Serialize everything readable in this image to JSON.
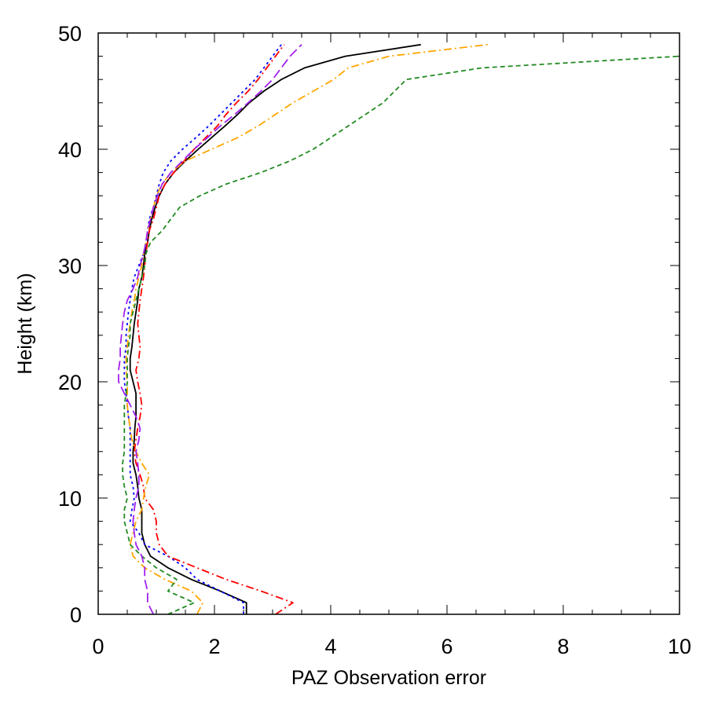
{
  "chart_data": {
    "type": "line",
    "title": "",
    "xlabel": "PAZ Observation error",
    "ylabel": "Height (km)",
    "xlim": [
      0,
      10
    ],
    "ylim": [
      0,
      50
    ],
    "xticks": [
      0,
      2,
      4,
      6,
      8,
      10
    ],
    "yticks": [
      0,
      10,
      20,
      30,
      40,
      50
    ],
    "grid": false,
    "series": [
      {
        "color": "#000000",
        "dash": "solid",
        "points": [
          [
            2.55,
            0
          ],
          [
            2.55,
            1
          ],
          [
            2.1,
            2
          ],
          [
            1.6,
            3
          ],
          [
            1.2,
            4
          ],
          [
            0.9,
            5
          ],
          [
            0.8,
            6
          ],
          [
            0.75,
            7
          ],
          [
            0.75,
            8
          ],
          [
            0.75,
            9
          ],
          [
            0.7,
            10
          ],
          [
            0.68,
            11
          ],
          [
            0.65,
            12
          ],
          [
            0.6,
            13
          ],
          [
            0.6,
            14
          ],
          [
            0.62,
            15
          ],
          [
            0.63,
            16
          ],
          [
            0.65,
            17
          ],
          [
            0.65,
            18
          ],
          [
            0.65,
            19
          ],
          [
            0.6,
            20
          ],
          [
            0.55,
            21
          ],
          [
            0.55,
            22
          ],
          [
            0.58,
            23
          ],
          [
            0.6,
            24
          ],
          [
            0.62,
            25
          ],
          [
            0.65,
            26
          ],
          [
            0.68,
            27
          ],
          [
            0.7,
            28
          ],
          [
            0.75,
            29
          ],
          [
            0.78,
            30
          ],
          [
            0.8,
            31
          ],
          [
            0.85,
            32
          ],
          [
            0.88,
            33
          ],
          [
            0.92,
            34
          ],
          [
            0.98,
            35
          ],
          [
            1.05,
            36
          ],
          [
            1.15,
            37
          ],
          [
            1.3,
            38
          ],
          [
            1.5,
            39
          ],
          [
            1.72,
            40
          ],
          [
            1.95,
            41
          ],
          [
            2.18,
            42
          ],
          [
            2.4,
            43
          ],
          [
            2.6,
            44
          ],
          [
            2.85,
            45
          ],
          [
            3.15,
            46
          ],
          [
            3.55,
            47
          ],
          [
            4.25,
            48
          ],
          [
            5.55,
            49
          ]
        ]
      },
      {
        "color": "#0000ff",
        "dash": "dotted",
        "points": [
          [
            2.5,
            0
          ],
          [
            2.5,
            1
          ],
          [
            2.1,
            2
          ],
          [
            1.7,
            3
          ],
          [
            1.5,
            4
          ],
          [
            1.2,
            5
          ],
          [
            0.8,
            6
          ],
          [
            0.7,
            7
          ],
          [
            0.55,
            8
          ],
          [
            0.58,
            9
          ],
          [
            0.62,
            10
          ],
          [
            0.6,
            11
          ],
          [
            0.55,
            12
          ],
          [
            0.55,
            13
          ],
          [
            0.55,
            14
          ],
          [
            0.55,
            15
          ],
          [
            0.55,
            16
          ],
          [
            0.52,
            17
          ],
          [
            0.5,
            18
          ],
          [
            0.48,
            19
          ],
          [
            0.45,
            20
          ],
          [
            0.45,
            21
          ],
          [
            0.45,
            22
          ],
          [
            0.48,
            23
          ],
          [
            0.48,
            24
          ],
          [
            0.5,
            25
          ],
          [
            0.52,
            26
          ],
          [
            0.55,
            27
          ],
          [
            0.58,
            28
          ],
          [
            0.62,
            29
          ],
          [
            0.7,
            30
          ],
          [
            0.78,
            31
          ],
          [
            0.82,
            32
          ],
          [
            0.85,
            33
          ],
          [
            0.88,
            34
          ],
          [
            0.95,
            35
          ],
          [
            1.0,
            36
          ],
          [
            1.05,
            37
          ],
          [
            1.12,
            38
          ],
          [
            1.25,
            39
          ],
          [
            1.45,
            40
          ],
          [
            1.68,
            41
          ],
          [
            1.9,
            42
          ],
          [
            2.1,
            43
          ],
          [
            2.3,
            44
          ],
          [
            2.5,
            45
          ],
          [
            2.7,
            46
          ],
          [
            2.85,
            47
          ],
          [
            3.0,
            48
          ],
          [
            3.15,
            49
          ]
        ]
      },
      {
        "color": "#ff0000",
        "dash": "dashdot",
        "points": [
          [
            3.05,
            0
          ],
          [
            3.35,
            1
          ],
          [
            2.8,
            2
          ],
          [
            2.2,
            3
          ],
          [
            1.7,
            4
          ],
          [
            1.2,
            5
          ],
          [
            1.05,
            6
          ],
          [
            1.0,
            7
          ],
          [
            1.0,
            8
          ],
          [
            0.95,
            9
          ],
          [
            0.8,
            10
          ],
          [
            0.78,
            11
          ],
          [
            0.72,
            12
          ],
          [
            0.65,
            13
          ],
          [
            0.62,
            14
          ],
          [
            0.65,
            15
          ],
          [
            0.68,
            16
          ],
          [
            0.72,
            17
          ],
          [
            0.75,
            18
          ],
          [
            0.72,
            19
          ],
          [
            0.68,
            20
          ],
          [
            0.65,
            21
          ],
          [
            0.7,
            22
          ],
          [
            0.72,
            23
          ],
          [
            0.7,
            24
          ],
          [
            0.68,
            25
          ],
          [
            0.7,
            26
          ],
          [
            0.72,
            27
          ],
          [
            0.75,
            28
          ],
          [
            0.78,
            29
          ],
          [
            0.8,
            30
          ],
          [
            0.82,
            31
          ],
          [
            0.85,
            32
          ],
          [
            0.88,
            33
          ],
          [
            0.95,
            34
          ],
          [
            1.0,
            35
          ],
          [
            1.05,
            36
          ],
          [
            1.15,
            37
          ],
          [
            1.3,
            38
          ],
          [
            1.48,
            39
          ],
          [
            1.65,
            40
          ],
          [
            1.85,
            41
          ],
          [
            2.05,
            42
          ],
          [
            2.2,
            43
          ],
          [
            2.38,
            44
          ],
          [
            2.58,
            45
          ],
          [
            2.75,
            46
          ],
          [
            2.9,
            47
          ],
          [
            3.05,
            48
          ],
          [
            3.2,
            49
          ]
        ]
      },
      {
        "color": "#ffa500",
        "dash": "dashdot",
        "points": [
          [
            1.7,
            0
          ],
          [
            1.8,
            1
          ],
          [
            1.6,
            2
          ],
          [
            1.15,
            3
          ],
          [
            0.8,
            4
          ],
          [
            0.6,
            5
          ],
          [
            0.55,
            6
          ],
          [
            0.6,
            7
          ],
          [
            0.65,
            8
          ],
          [
            0.75,
            9
          ],
          [
            0.78,
            10
          ],
          [
            0.82,
            11
          ],
          [
            0.88,
            12
          ],
          [
            0.75,
            13
          ],
          [
            0.65,
            14
          ],
          [
            0.58,
            15
          ],
          [
            0.55,
            16
          ],
          [
            0.52,
            17
          ],
          [
            0.5,
            18
          ],
          [
            0.5,
            19
          ],
          [
            0.5,
            20
          ],
          [
            0.48,
            21
          ],
          [
            0.48,
            22
          ],
          [
            0.5,
            23
          ],
          [
            0.52,
            24
          ],
          [
            0.55,
            25
          ],
          [
            0.58,
            26
          ],
          [
            0.62,
            27
          ],
          [
            0.65,
            28
          ],
          [
            0.7,
            29
          ],
          [
            0.75,
            30
          ],
          [
            0.78,
            31
          ],
          [
            0.82,
            32
          ],
          [
            0.85,
            33
          ],
          [
            0.9,
            34
          ],
          [
            0.95,
            35
          ],
          [
            1.0,
            36
          ],
          [
            1.1,
            37
          ],
          [
            1.25,
            38
          ],
          [
            1.5,
            39
          ],
          [
            1.95,
            40
          ],
          [
            2.4,
            41
          ],
          [
            2.75,
            42
          ],
          [
            3.05,
            43
          ],
          [
            3.35,
            44
          ],
          [
            3.7,
            45
          ],
          [
            4.05,
            46
          ],
          [
            4.3,
            47
          ],
          [
            5.0,
            48
          ],
          [
            6.7,
            49
          ]
        ]
      },
      {
        "color": "#228b22",
        "dash": "dashed",
        "points": [
          [
            1.2,
            0
          ],
          [
            1.65,
            1
          ],
          [
            1.2,
            2
          ],
          [
            1.35,
            3
          ],
          [
            1.0,
            4
          ],
          [
            0.75,
            5
          ],
          [
            0.55,
            6
          ],
          [
            0.5,
            7
          ],
          [
            0.45,
            8
          ],
          [
            0.45,
            9
          ],
          [
            0.5,
            10
          ],
          [
            0.45,
            11
          ],
          [
            0.42,
            12
          ],
          [
            0.42,
            13
          ],
          [
            0.45,
            14
          ],
          [
            0.45,
            15
          ],
          [
            0.45,
            16
          ],
          [
            0.45,
            17
          ],
          [
            0.45,
            18
          ],
          [
            0.48,
            19
          ],
          [
            0.5,
            20
          ],
          [
            0.5,
            21
          ],
          [
            0.5,
            22
          ],
          [
            0.52,
            23
          ],
          [
            0.55,
            24
          ],
          [
            0.55,
            25
          ],
          [
            0.6,
            26
          ],
          [
            0.65,
            27
          ],
          [
            0.7,
            28
          ],
          [
            0.75,
            29
          ],
          [
            0.8,
            30
          ],
          [
            0.82,
            31
          ],
          [
            0.9,
            32
          ],
          [
            1.1,
            33
          ],
          [
            1.25,
            34
          ],
          [
            1.4,
            35
          ],
          [
            1.75,
            36
          ],
          [
            2.2,
            37
          ],
          [
            2.8,
            38
          ],
          [
            3.3,
            39
          ],
          [
            3.7,
            40
          ],
          [
            4.0,
            41
          ],
          [
            4.3,
            42
          ],
          [
            4.6,
            43
          ],
          [
            4.9,
            44
          ],
          [
            5.1,
            45
          ],
          [
            5.3,
            46
          ],
          [
            6.6,
            47
          ],
          [
            10.0,
            48
          ]
        ]
      },
      {
        "color": "#a020f0",
        "dash": "longdash",
        "points": [
          [
            0.95,
            0
          ],
          [
            0.85,
            1
          ],
          [
            0.85,
            2
          ],
          [
            0.8,
            3
          ],
          [
            0.8,
            4
          ],
          [
            0.75,
            5
          ],
          [
            0.65,
            6
          ],
          [
            0.62,
            7
          ],
          [
            0.6,
            8
          ],
          [
            0.62,
            9
          ],
          [
            0.65,
            10
          ],
          [
            0.7,
            11
          ],
          [
            0.7,
            12
          ],
          [
            0.68,
            13
          ],
          [
            0.65,
            14
          ],
          [
            0.7,
            15
          ],
          [
            0.72,
            16
          ],
          [
            0.65,
            17
          ],
          [
            0.55,
            18
          ],
          [
            0.45,
            19
          ],
          [
            0.35,
            20
          ],
          [
            0.35,
            21
          ],
          [
            0.38,
            22
          ],
          [
            0.38,
            23
          ],
          [
            0.4,
            24
          ],
          [
            0.42,
            25
          ],
          [
            0.45,
            26
          ],
          [
            0.5,
            27
          ],
          [
            0.6,
            28
          ],
          [
            0.68,
            29
          ],
          [
            0.72,
            30
          ],
          [
            0.78,
            31
          ],
          [
            0.82,
            32
          ],
          [
            0.85,
            33
          ],
          [
            0.9,
            34
          ],
          [
            0.95,
            35
          ],
          [
            1.02,
            36
          ],
          [
            1.1,
            37
          ],
          [
            1.25,
            38
          ],
          [
            1.45,
            39
          ],
          [
            1.65,
            40
          ],
          [
            1.88,
            41
          ],
          [
            2.1,
            42
          ],
          [
            2.35,
            43
          ],
          [
            2.58,
            44
          ],
          [
            2.8,
            45
          ],
          [
            3.0,
            46
          ],
          [
            3.15,
            47
          ],
          [
            3.3,
            48
          ],
          [
            3.5,
            49
          ]
        ]
      }
    ]
  }
}
